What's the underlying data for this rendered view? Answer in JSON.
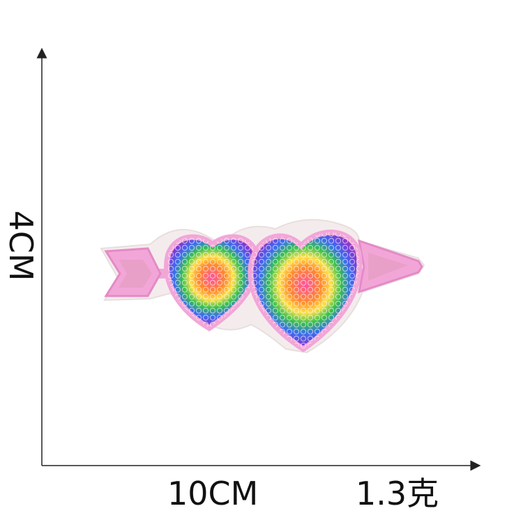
{
  "dimensions": {
    "height_label": "4CM",
    "width_label": "10CM",
    "weight_label": "1.3克"
  },
  "colors": {
    "axis": "#222222",
    "patch_border": "#f2a6d8",
    "patch_backing": "#f4ecec",
    "sequin_colors": [
      "#e0408a",
      "#ff8a2a",
      "#ffe14a",
      "#38c04e",
      "#3a6df0",
      "#7a3bd6",
      "#d23a9b"
    ]
  },
  "product": {
    "icon": "double-heart-arrow-sequin-patch-icon"
  }
}
